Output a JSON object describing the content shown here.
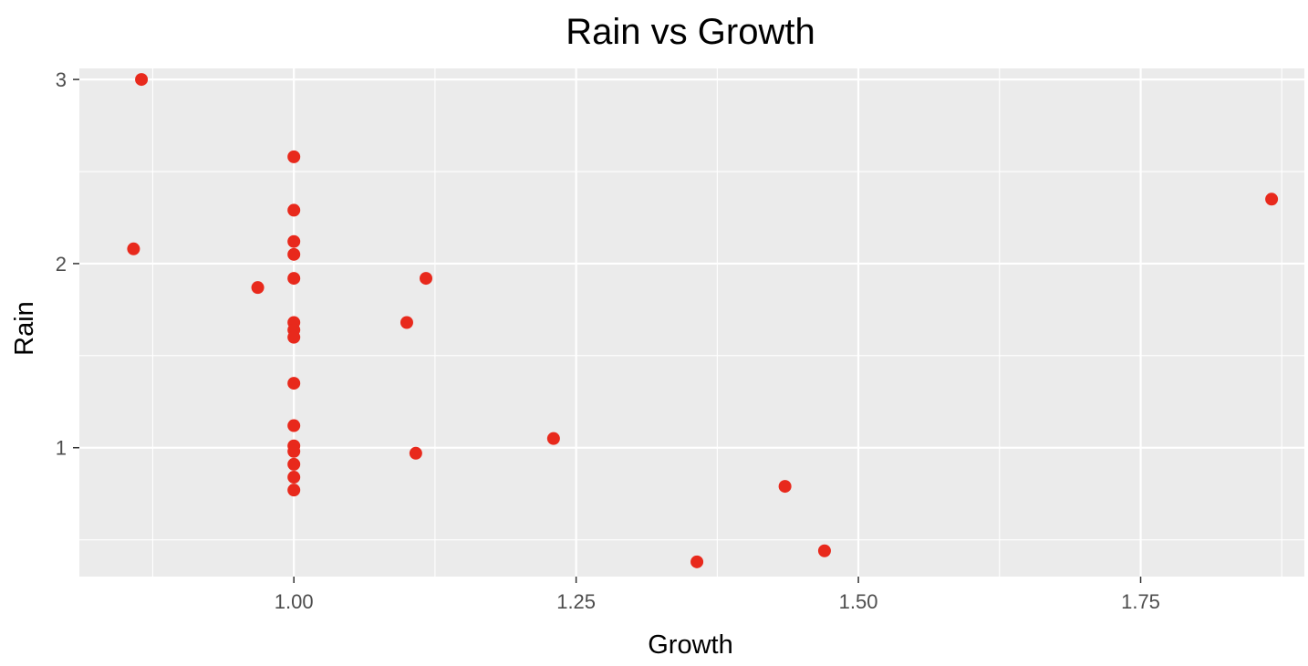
{
  "chart_data": {
    "type": "scatter",
    "title": "Rain vs Growth",
    "xlabel": "Growth",
    "ylabel": "Rain",
    "xlim": [
      0.81,
      1.895
    ],
    "ylim": [
      0.3,
      3.06
    ],
    "x_ticks": [
      1.0,
      1.25,
      1.5,
      1.75
    ],
    "x_tick_labels": [
      "1.00",
      "1.25",
      "1.50",
      "1.75"
    ],
    "y_ticks": [
      1,
      2,
      3
    ],
    "y_tick_labels": [
      "1",
      "2",
      "3"
    ],
    "grid": true,
    "legend": "none",
    "colors": {
      "panel": "#ebebeb",
      "grid": "#ffffff",
      "point": "#e8291c",
      "tick": "#333333"
    },
    "points": [
      {
        "x": 0.865,
        "y": 3.0
      },
      {
        "x": 0.858,
        "y": 2.08
      },
      {
        "x": 0.968,
        "y": 1.87
      },
      {
        "x": 1.0,
        "y": 2.58
      },
      {
        "x": 1.0,
        "y": 2.29
      },
      {
        "x": 1.0,
        "y": 2.12
      },
      {
        "x": 1.0,
        "y": 2.05
      },
      {
        "x": 1.0,
        "y": 1.92
      },
      {
        "x": 1.0,
        "y": 1.68
      },
      {
        "x": 1.0,
        "y": 1.64
      },
      {
        "x": 1.0,
        "y": 1.6
      },
      {
        "x": 1.0,
        "y": 1.35
      },
      {
        "x": 1.0,
        "y": 1.12
      },
      {
        "x": 1.0,
        "y": 1.01
      },
      {
        "x": 1.0,
        "y": 0.98
      },
      {
        "x": 1.0,
        "y": 0.91
      },
      {
        "x": 1.0,
        "y": 0.84
      },
      {
        "x": 1.0,
        "y": 0.77
      },
      {
        "x": 1.1,
        "y": 1.68
      },
      {
        "x": 1.117,
        "y": 1.92
      },
      {
        "x": 1.108,
        "y": 0.97
      },
      {
        "x": 1.23,
        "y": 1.05
      },
      {
        "x": 1.357,
        "y": 0.38
      },
      {
        "x": 1.435,
        "y": 0.79
      },
      {
        "x": 1.47,
        "y": 0.44
      },
      {
        "x": 1.866,
        "y": 2.35
      }
    ]
  }
}
